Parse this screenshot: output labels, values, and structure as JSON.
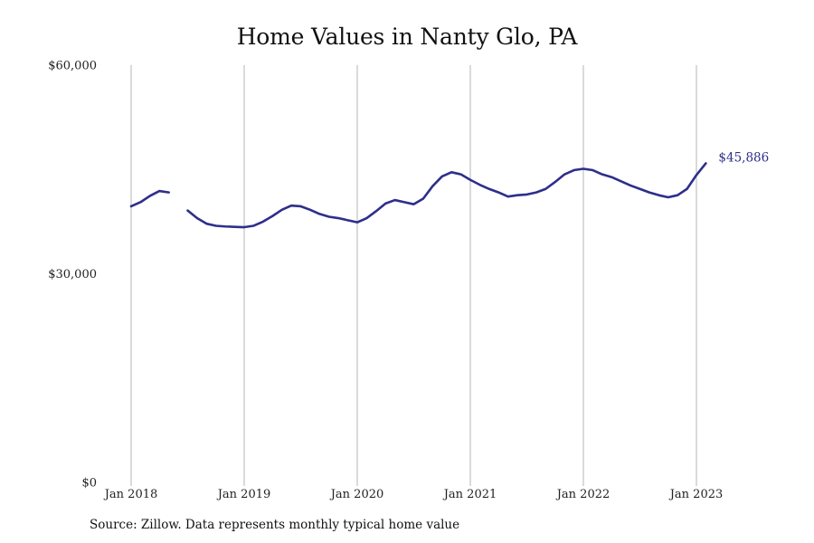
{
  "title": "Home Values in Nanty Glo, PA",
  "source": "Source: Zillow. Data represents monthly typical home value",
  "chart_data": {
    "type": "line",
    "title": "Home Values in Nanty Glo, PA",
    "xlabel": "",
    "ylabel": "",
    "ylim": [
      0,
      60000
    ],
    "yticks": [
      0,
      30000,
      60000
    ],
    "ytick_labels": [
      "$0",
      "$30,000",
      "$60,000"
    ],
    "xlim": [
      "2018-01",
      "2023-01"
    ],
    "xticks": [
      "2018-01",
      "2019-01",
      "2020-01",
      "2021-01",
      "2022-01",
      "2023-01"
    ],
    "xtick_labels": [
      "Jan 2018",
      "Jan 2019",
      "Jan 2020",
      "Jan 2021",
      "Jan 2022",
      "Jan 2023"
    ],
    "grid": "vertical",
    "color": "#2e2e8c",
    "end_label": "$45,886",
    "series": [
      {
        "x": [
          "2018-01",
          "2018-02",
          "2018-03",
          "2018-04",
          "2018-05",
          "2018-06",
          "2018-07",
          "2018-08",
          "2018-09",
          "2018-10",
          "2018-11",
          "2018-12",
          "2019-01",
          "2019-02",
          "2019-03",
          "2019-04",
          "2019-05",
          "2019-06",
          "2019-07",
          "2019-08",
          "2019-09",
          "2019-10",
          "2019-11",
          "2019-12",
          "2020-01",
          "2020-02",
          "2020-03",
          "2020-04",
          "2020-05",
          "2020-06",
          "2020-07",
          "2020-08",
          "2020-09",
          "2020-10",
          "2020-11",
          "2020-12",
          "2021-01",
          "2021-02",
          "2021-03",
          "2021-04",
          "2021-05",
          "2021-06",
          "2021-07",
          "2021-08",
          "2021-09",
          "2021-10",
          "2021-11",
          "2021-12",
          "2022-01",
          "2022-02",
          "2022-03",
          "2022-04",
          "2022-05",
          "2022-06",
          "2022-07",
          "2022-08",
          "2022-09",
          "2022-10",
          "2022-11",
          "2022-12",
          "2023-01",
          "2023-02"
        ],
        "y": [
          39700,
          40300,
          41200,
          41900,
          41700,
          null,
          39100,
          38000,
          37200,
          36900,
          36800,
          36750,
          36700,
          36900,
          37500,
          38300,
          39200,
          39800,
          39700,
          39200,
          38600,
          38200,
          38000,
          37700,
          37400,
          38000,
          39000,
          40100,
          40600,
          40300,
          40000,
          40800,
          42600,
          44000,
          44600,
          44300,
          43500,
          42800,
          42200,
          41700,
          41100,
          41300,
          41400,
          41700,
          42200,
          43200,
          44300,
          44900,
          45100,
          44900,
          44300,
          43900,
          43300,
          42700,
          42200,
          41700,
          41300,
          41000,
          41300,
          42200,
          44200,
          45886
        ]
      }
    ]
  }
}
